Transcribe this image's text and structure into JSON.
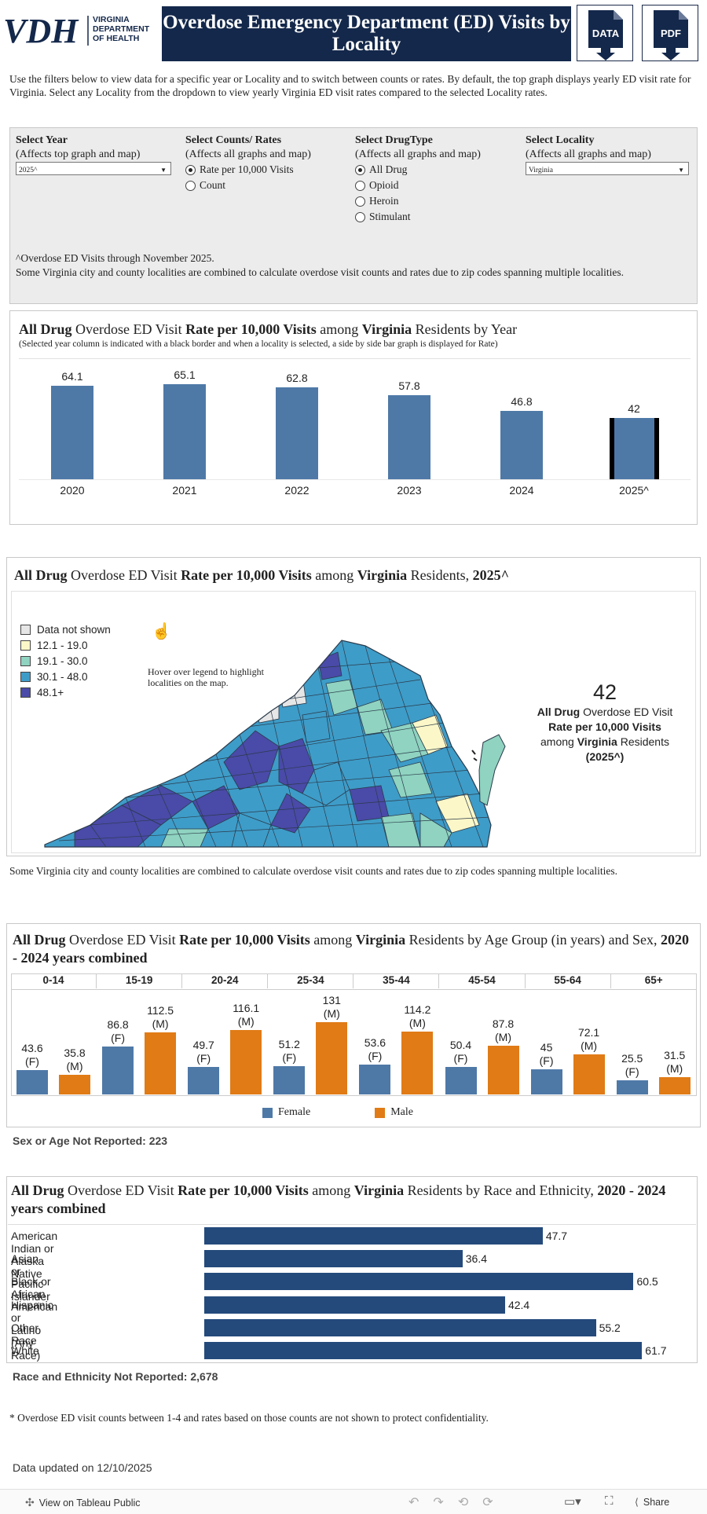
{
  "header": {
    "logo_text": "VDH",
    "logo_sub": [
      "VIRGINIA",
      "DEPARTMENT",
      "OF HEALTH"
    ],
    "title": "Overdose Emergency Department (ED) Visits by Locality",
    "data_button": "DATA",
    "pdf_button": "PDF"
  },
  "intro": "Use the filters below to view data for a specific year or Locality and to switch between counts or rates. By default, the top graph displays yearly ED visit rate for Virginia. Select any Locality from the dropdown to view yearly Virginia ED visit rates compared to the selected Locality rates.",
  "filters": {
    "year": {
      "heading": "Select Year",
      "sub": "(Affects top graph and map)",
      "value": "2025^"
    },
    "counts_rates": {
      "heading": "Select Counts/ Rates",
      "sub": "(Affects all graphs and map)",
      "options": [
        "Rate per 10,000 Visits",
        "Count"
      ],
      "selected": 0
    },
    "drugtype": {
      "heading": "Select DrugType",
      "sub": "(Affects all graphs and map)",
      "options": [
        "All Drug",
        "Opioid",
        "Heroin",
        "Stimulant"
      ],
      "selected": 0
    },
    "locality": {
      "heading": "Select Locality",
      "sub": "(Affects all graphs and map)",
      "value": "Virginia"
    },
    "note1": "^Overdose ED Visits through November 2025.",
    "note2": "Some Virginia city and county localities are combined to calculate overdose visit counts and rates due to zip codes spanning multiple localities."
  },
  "yearly": {
    "t_drug": "All Drug",
    "t_mid": " Overdose ED Visit ",
    "t_rate": "Rate per 10,000 Visits",
    "t_among": " among ",
    "t_loc": "Virginia",
    "t_end": " Residents by Year",
    "subtitle": "(Selected year column is indicated with a black border and when a locality is selected, a side by side bar graph is displayed for Rate)"
  },
  "chart_data": [
    {
      "type": "bar",
      "title": "All Drug Overdose ED Visit Rate per 10,000 Visits among Virginia Residents by Year",
      "categories": [
        "2020",
        "2021",
        "2022",
        "2023",
        "2024",
        "2025^"
      ],
      "values": [
        64.1,
        65.1,
        62.8,
        57.8,
        46.8,
        42
      ],
      "value_labels": [
        "64.1",
        "65.1",
        "62.8",
        "57.8",
        "46.8",
        "42"
      ],
      "selected": "2025^",
      "ylim": [
        0,
        70
      ]
    },
    {
      "type": "bar",
      "title": "All Drug Overdose ED Visit Rate per 10,000 Visits among Virginia Residents by Age Group (in years) and Sex, 2020 - 2024 years combined",
      "categories": [
        "0-14",
        "15-19",
        "20-24",
        "25-34",
        "35-44",
        "45-54",
        "55-64",
        "65+"
      ],
      "series": [
        {
          "name": "Female",
          "values": [
            43.6,
            86.8,
            49.7,
            51.2,
            53.6,
            50.4,
            45,
            25.5
          ],
          "labels": [
            "43.6",
            "86.8",
            "49.7",
            "51.2",
            "53.6",
            "50.4",
            "45",
            "25.5"
          ],
          "tag": "(F)"
        },
        {
          "name": "Male",
          "values": [
            35.8,
            112.5,
            116.1,
            131,
            114.2,
            87.8,
            72.1,
            31.5
          ],
          "labels": [
            "35.8",
            "112.5",
            "116.1",
            "131",
            "114.2",
            "87.8",
            "72.1",
            "31.5"
          ],
          "tag": "(M)"
        }
      ],
      "colors": {
        "Female": "#4e79a7",
        "Male": "#e07b16"
      },
      "ylim": [
        0,
        140
      ]
    },
    {
      "type": "bar",
      "orientation": "horizontal",
      "title": "All Drug Overdose ED Visit Rate per 10,000 Visits among Virginia Residents by Race and Ethnicity, 2020 - 2024 years combined",
      "categories": [
        "American Indian or Alaska Native",
        "Asian or Pacific Islander",
        "Black or African American",
        "Hispanic or Latino (Any Race)",
        "Other Race",
        "White"
      ],
      "values": [
        47.7,
        36.4,
        60.5,
        42.4,
        55.2,
        61.7
      ],
      "value_labels": [
        "47.7",
        "36.4",
        "60.5",
        "42.4",
        "55.2",
        "61.7"
      ],
      "xlim": [
        0,
        62
      ]
    }
  ],
  "map": {
    "t_drug": "All Drug",
    "t_mid": " Overdose ED Visit ",
    "t_rate": "Rate per 10,000 Visits",
    "t_among": " among ",
    "t_loc": "Virginia",
    "t_end": " Residents, ",
    "t_year": "2025^",
    "legend": [
      {
        "label": "Data not shown",
        "color": "#e6e6e6"
      },
      {
        "label": "12.1 - 19.0",
        "color": "#fbf7c8"
      },
      {
        "label": "19.1 - 30.0",
        "color": "#8fd3c0"
      },
      {
        "label": "30.1 - 48.0",
        "color": "#3e9cc8"
      },
      {
        "label": "48.1+",
        "color": "#4a4aa8"
      }
    ],
    "hover_hint": "Hover over legend to highlight localities on the map.",
    "kpi_value": "42",
    "kpi_drug": "All Drug",
    "kpi_mid": " Overdose ED Visit",
    "kpi_rate": "Rate per 10,000 Visits",
    "kpi_among": "among ",
    "kpi_loc": "Virginia",
    "kpi_res": " Residents",
    "kpi_year": "(2025^)",
    "note": "Some Virginia city and county localities are combined to calculate overdose visit counts and rates due to zip codes spanning multiple localities."
  },
  "age": {
    "t_drug": "All Drug",
    "t_mid": " Overdose ED Visit ",
    "t_rate": "Rate per 10,000 Visits",
    "t_among": " among ",
    "t_loc": "Virginia",
    "t_end": " Residents by Age Group (in years) and Sex, ",
    "t_years": "2020 - 2024 years combined",
    "legend_female": "Female",
    "legend_male": "Male",
    "not_reported": "Sex or Age Not Reported: 223"
  },
  "race": {
    "t_drug": "All Drug",
    "t_mid": " Overdose ED Visit ",
    "t_rate": "Rate per 10,000 Visits",
    "t_among": " among ",
    "t_loc": "Virginia",
    "t_end": " Residents by Race and Ethnicity, ",
    "t_years": "2020 - 2024 years combined",
    "not_reported": "Race and Ethnicity Not Reported: 2,678"
  },
  "confidentiality": "* Overdose ED visit counts between 1-4 and rates based on those counts are not shown to protect confidentiality.",
  "updated": "Data updated on 12/10/2025",
  "footer": {
    "view_on": "View on Tableau Public",
    "share": "Share"
  }
}
